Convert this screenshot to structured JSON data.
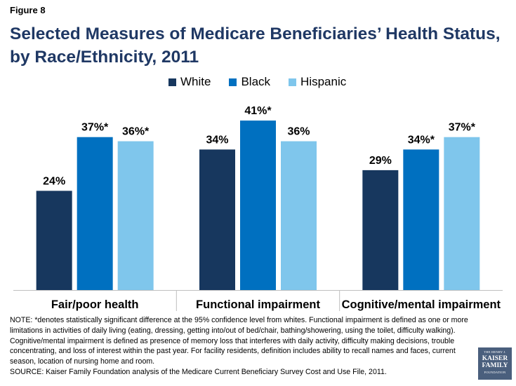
{
  "figure_label": "Figure 8",
  "title": "Selected Measures of Medicare Beneficiaries’ Health Status, by Race/Ethnicity, 2011",
  "colors": {
    "White": "#17375e",
    "Black": "#0070c0",
    "Hispanic": "#7fc6ec"
  },
  "chart_data": {
    "type": "bar",
    "title": "Selected Measures of Medicare Beneficiaries’ Health Status, by Race/Ethnicity, 2011",
    "categories": [
      "Fair/poor health",
      "Functional impairment",
      "Cognitive/mental impairment"
    ],
    "series": [
      {
        "name": "White",
        "values": [
          24,
          34,
          29
        ],
        "labels": [
          "24%",
          "34%",
          "29%"
        ]
      },
      {
        "name": "Black",
        "values": [
          37,
          41,
          34
        ],
        "labels": [
          "37%*",
          "41%*",
          "34%*"
        ]
      },
      {
        "name": "Hispanic",
        "values": [
          36,
          36,
          37
        ],
        "labels": [
          "36%*",
          "36%",
          "37%*"
        ]
      }
    ],
    "ylim": [
      0,
      42
    ],
    "xlabel": "",
    "ylabel": "",
    "legend_position": "top-center",
    "grid": false
  },
  "notes": {
    "note": "NOTE: *denotes statistically significant difference at the 95% confidence level from whites. Functional impairment is defined as one or more limitations in activities of daily living (eating, dressing, getting into/out of bed/chair, bathing/showering, using the toilet, difficulty walking). Cognitive/mental impairment is defined as presence of memory loss that interferes with daily activity, difficulty making decisions, trouble concentrating, and loss of interest within the past year. For facility residents, definition includes ability to recall names and faces, current season, location of nursing home and room.",
    "source": "SOURCE: Kaiser Family Foundation analysis of the Medicare Current Beneficiary Survey Cost and Use File, 2011."
  },
  "logo": {
    "line1": "THE HENRY J.",
    "line2": "KAISER",
    "line3": "FAMILY",
    "line4": "FOUNDATION"
  }
}
